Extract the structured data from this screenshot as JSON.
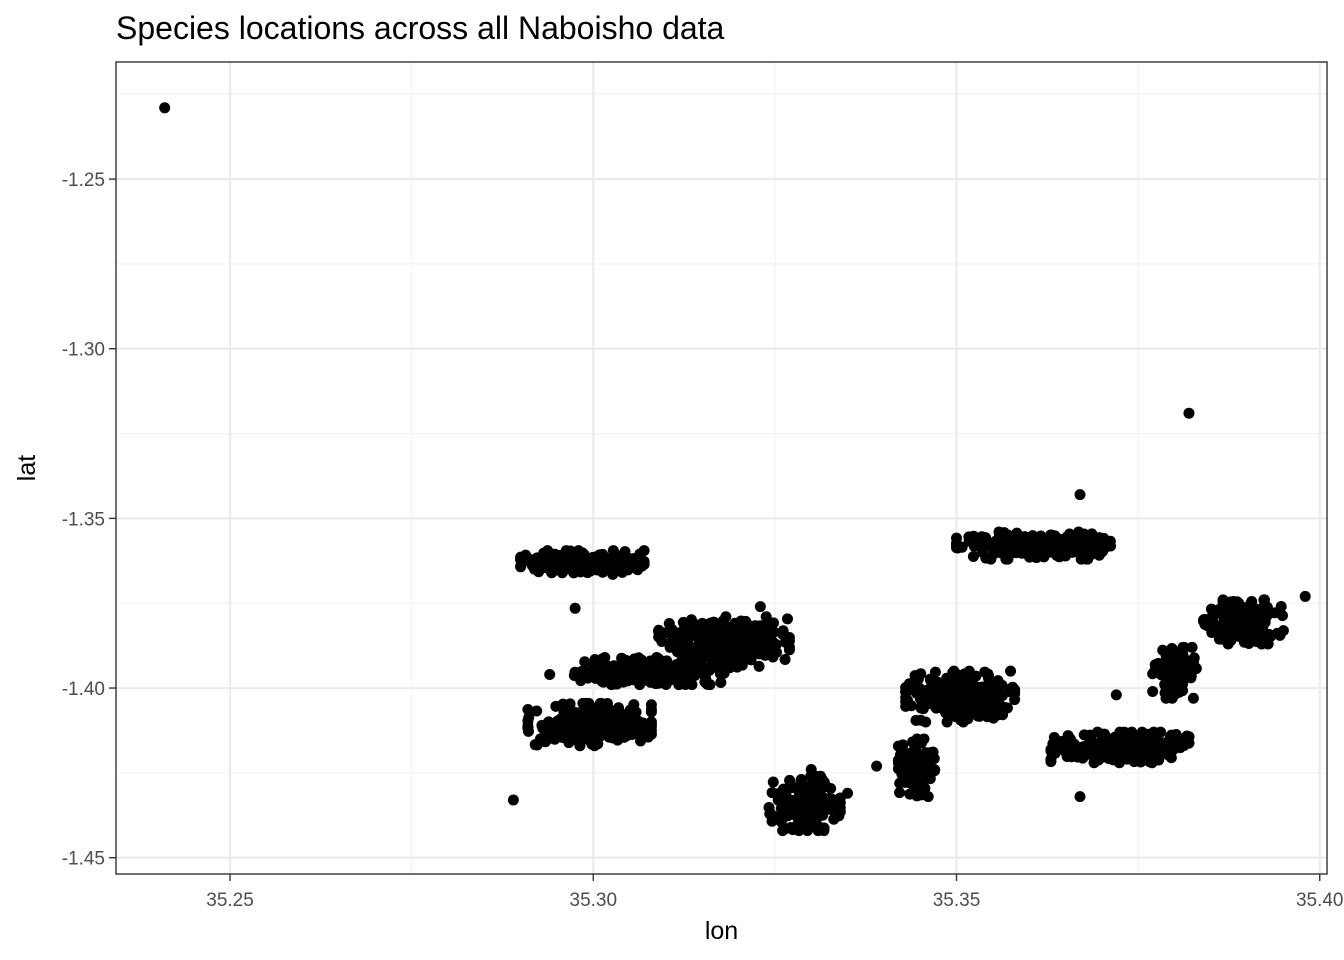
{
  "chart_data": {
    "type": "scatter",
    "title": "Species locations across all Naboisho data",
    "xlabel": "lon",
    "ylabel": "lat",
    "xlim": [
      35.2343,
      35.401
    ],
    "ylim": [
      -1.4548,
      -1.2155
    ],
    "x_ticks": [
      35.25,
      35.3,
      35.35,
      35.4
    ],
    "x_tick_labels": [
      "35.25",
      "35.30",
      "35.35",
      "35.40"
    ],
    "y_ticks": [
      -1.25,
      -1.3,
      -1.35,
      -1.4,
      -1.45
    ],
    "y_tick_labels": [
      "-1.25",
      "-1.30",
      "-1.35",
      "-1.40",
      "-1.45"
    ],
    "grid": true,
    "legend": "none",
    "point_color": "#000000",
    "clusters": [
      {
        "x_range": [
          35.29,
          35.307
        ],
        "y_range": [
          -1.3665,
          -1.3595
        ],
        "count": 160
      },
      {
        "x_range": [
          35.291,
          35.308
        ],
        "y_range": [
          -1.417,
          -1.4045
        ],
        "count": 260
      },
      {
        "x_range": [
          35.297,
          35.318
        ],
        "y_range": [
          -1.399,
          -1.391
        ],
        "count": 260
      },
      {
        "x_range": [
          35.309,
          35.327
        ],
        "y_range": [
          -1.394,
          -1.379
        ],
        "count": 280
      },
      {
        "x_range": [
          35.324,
          35.334
        ],
        "y_range": [
          -1.442,
          -1.426
        ],
        "count": 180
      },
      {
        "x_range": [
          35.342,
          35.347
        ],
        "y_range": [
          -1.432,
          -1.415
        ],
        "count": 120
      },
      {
        "x_range": [
          35.343,
          35.358
        ],
        "y_range": [
          -1.41,
          -1.395
        ],
        "count": 280
      },
      {
        "x_range": [
          35.35,
          35.372
        ],
        "y_range": [
          -1.362,
          -1.354
        ],
        "count": 240
      },
      {
        "x_range": [
          35.363,
          35.382
        ],
        "y_range": [
          -1.422,
          -1.413
        ],
        "count": 240
      },
      {
        "x_range": [
          35.377,
          35.383
        ],
        "y_range": [
          -1.403,
          -1.388
        ],
        "count": 140
      },
      {
        "x_range": [
          35.384,
          35.395
        ],
        "y_range": [
          -1.387,
          -1.374
        ],
        "count": 150
      }
    ],
    "outliers": [
      {
        "x": 35.241,
        "y": -1.229
      },
      {
        "x": 35.382,
        "y": -1.319
      },
      {
        "x": 35.367,
        "y": -1.343
      },
      {
        "x": 35.289,
        "y": -1.433
      },
      {
        "x": 35.367,
        "y": -1.432
      },
      {
        "x": 35.398,
        "y": -1.373
      },
      {
        "x": 35.372,
        "y": -1.402
      },
      {
        "x": 35.2975,
        "y": -1.3765
      },
      {
        "x": 35.294,
        "y": -1.396
      },
      {
        "x": 35.323,
        "y": -1.376
      },
      {
        "x": 35.339,
        "y": -1.423
      },
      {
        "x": 35.33,
        "y": -1.424
      },
      {
        "x": 35.335,
        "y": -1.431
      },
      {
        "x": 35.322,
        "y": -1.387
      }
    ]
  }
}
